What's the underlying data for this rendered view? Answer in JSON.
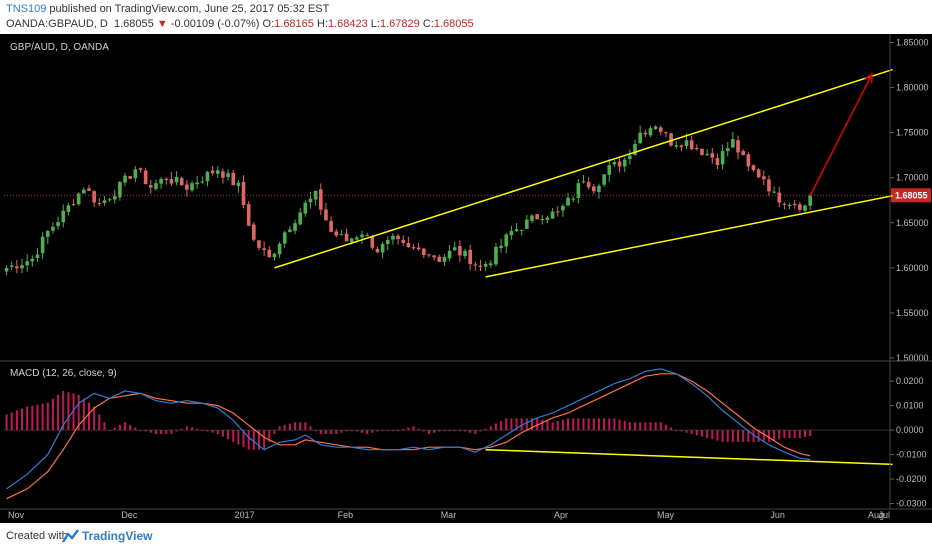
{
  "header": {
    "user": "TNS109",
    "published": " published on TradingView.com, June 25, 2017 05:32 EST",
    "symbol": "OANDA:GBPAUD, D",
    "last": "1.68055",
    "change_arrow": "▼",
    "change": "-0.00109 (-0.07%)",
    "o_label": "O:",
    "o": "1.68165",
    "h_label": "H:",
    "h": "1.68423",
    "l_label": "L:",
    "l": "1.67829",
    "c_label": "C:",
    "c": "1.68055"
  },
  "footer": {
    "created_with": "Created with",
    "brand": "TradingView"
  },
  "colors": {
    "background": "#000000",
    "up": "#4caf50",
    "down": "#e06666",
    "channel": "#ffff00",
    "projection": "#e00000",
    "macd": "#2f7bd0",
    "signal": "#ff7043",
    "histogram": "#c2185b",
    "price_tag": "#c62828"
  },
  "chart_data": [
    {
      "type": "candlestick",
      "title": "GBP/AUD, D, OANDA",
      "ylim": [
        1.5,
        1.855
      ],
      "yticks": [
        "1.85000",
        "1.80000",
        "1.75000",
        "1.70000",
        "1.65000",
        "1.60000",
        "1.55000",
        "1.50000"
      ],
      "xticks": [
        "Nov",
        "Dec",
        "2017",
        "Feb",
        "Mar",
        "Apr",
        "May",
        "Jun",
        "Jul",
        "Aug"
      ],
      "last_price_label": "1.68055",
      "close_path": [
        [
          0,
          1.6
        ],
        [
          5,
          1.61
        ],
        [
          8,
          1.64
        ],
        [
          11,
          1.66
        ],
        [
          15,
          1.69
        ],
        [
          18,
          1.67
        ],
        [
          22,
          1.69
        ],
        [
          25,
          1.71
        ],
        [
          28,
          1.69
        ],
        [
          31,
          1.7
        ],
        [
          35,
          1.69
        ],
        [
          38,
          1.7
        ],
        [
          41,
          1.71
        ],
        [
          45,
          1.69
        ],
        [
          48,
          1.63
        ],
        [
          51,
          1.61
        ],
        [
          54,
          1.64
        ],
        [
          58,
          1.67
        ],
        [
          60,
          1.68
        ],
        [
          63,
          1.64
        ],
        [
          66,
          1.63
        ],
        [
          69,
          1.64
        ],
        [
          72,
          1.62
        ],
        [
          75,
          1.63
        ],
        [
          78,
          1.62
        ],
        [
          81,
          1.62
        ],
        [
          84,
          1.61
        ],
        [
          87,
          1.62
        ],
        [
          90,
          1.61
        ],
        [
          92,
          1.6
        ],
        [
          94,
          1.61
        ],
        [
          98,
          1.64
        ],
        [
          101,
          1.65
        ],
        [
          104,
          1.66
        ],
        [
          107,
          1.66
        ],
        [
          110,
          1.68
        ],
        [
          112,
          1.7
        ],
        [
          114,
          1.69
        ],
        [
          117,
          1.71
        ],
        [
          120,
          1.72
        ],
        [
          123,
          1.75
        ],
        [
          126,
          1.76
        ],
        [
          129,
          1.74
        ],
        [
          132,
          1.74
        ],
        [
          135,
          1.73
        ],
        [
          138,
          1.72
        ],
        [
          141,
          1.74
        ],
        [
          144,
          1.71
        ],
        [
          147,
          1.7
        ],
        [
          149,
          1.68
        ],
        [
          151,
          1.675
        ],
        [
          153,
          1.672
        ],
        [
          155,
          1.668
        ],
        [
          156,
          1.6805
        ]
      ],
      "channel_upper": [
        [
          1.6,
          52
        ],
        [
          1.82,
          172
        ]
      ],
      "channel_lower": [
        [
          1.59,
          93
        ],
        [
          1.68,
          172
        ]
      ],
      "projection_arrow": {
        "from": [
          156,
          1.68
        ],
        "to": [
          168,
          1.815
        ]
      }
    },
    {
      "type": "line",
      "title": "MACD (12, 26, close, 9)",
      "ylim": [
        -0.031,
        0.027
      ],
      "yticks": [
        "0.0200",
        "0.0100",
        "0.0000",
        "-0.0100",
        "-0.0200",
        "-0.0300"
      ],
      "series": [
        {
          "name": "MACD",
          "points": [
            [
              0,
              -0.024
            ],
            [
              4,
              -0.018
            ],
            [
              8,
              -0.01
            ],
            [
              11,
              0.002
            ],
            [
              14,
              0.011
            ],
            [
              17,
              0.015
            ],
            [
              20,
              0.013
            ],
            [
              23,
              0.016
            ],
            [
              26,
              0.015
            ],
            [
              29,
              0.012
            ],
            [
              32,
              0.011
            ],
            [
              35,
              0.012
            ],
            [
              38,
              0.011
            ],
            [
              41,
              0.009
            ],
            [
              44,
              0.004
            ],
            [
              47,
              -0.003
            ],
            [
              50,
              -0.008
            ],
            [
              53,
              -0.005
            ],
            [
              56,
              -0.004
            ],
            [
              58,
              -0.002
            ],
            [
              61,
              -0.006
            ],
            [
              64,
              -0.007
            ],
            [
              67,
              -0.007
            ],
            [
              70,
              -0.008
            ],
            [
              73,
              -0.008
            ],
            [
              76,
              -0.008
            ],
            [
              79,
              -0.007
            ],
            [
              82,
              -0.008
            ],
            [
              85,
              -0.007
            ],
            [
              88,
              -0.007
            ],
            [
              91,
              -0.009
            ],
            [
              94,
              -0.006
            ],
            [
              97,
              -0.002
            ],
            [
              100,
              0.002
            ],
            [
              103,
              0.005
            ],
            [
              106,
              0.007
            ],
            [
              109,
              0.01
            ],
            [
              112,
              0.013
            ],
            [
              115,
              0.016
            ],
            [
              118,
              0.019
            ],
            [
              121,
              0.021
            ],
            [
              124,
              0.024
            ],
            [
              127,
              0.025
            ],
            [
              130,
              0.023
            ],
            [
              133,
              0.019
            ],
            [
              136,
              0.014
            ],
            [
              139,
              0.008
            ],
            [
              142,
              0.003
            ],
            [
              145,
              -0.002
            ],
            [
              148,
              -0.006
            ],
            [
              151,
              -0.009
            ],
            [
              154,
              -0.0115
            ],
            [
              156,
              -0.012
            ]
          ]
        },
        {
          "name": "Signal",
          "points": [
            [
              0,
              -0.028
            ],
            [
              4,
              -0.024
            ],
            [
              8,
              -0.017
            ],
            [
              11,
              -0.008
            ],
            [
              14,
              0.002
            ],
            [
              17,
              0.009
            ],
            [
              20,
              0.013
            ],
            [
              23,
              0.014
            ],
            [
              26,
              0.015
            ],
            [
              29,
              0.013
            ],
            [
              32,
              0.012
            ],
            [
              35,
              0.011
            ],
            [
              38,
              0.011
            ],
            [
              41,
              0.01
            ],
            [
              44,
              0.007
            ],
            [
              47,
              0.002
            ],
            [
              50,
              -0.003
            ],
            [
              53,
              -0.006
            ],
            [
              56,
              -0.006
            ],
            [
              58,
              -0.004
            ],
            [
              61,
              -0.005
            ],
            [
              64,
              -0.006
            ],
            [
              67,
              -0.007
            ],
            [
              70,
              -0.007
            ],
            [
              73,
              -0.008
            ],
            [
              76,
              -0.008
            ],
            [
              79,
              -0.008
            ],
            [
              82,
              -0.007
            ],
            [
              85,
              -0.007
            ],
            [
              88,
              -0.007
            ],
            [
              91,
              -0.008
            ],
            [
              94,
              -0.007
            ],
            [
              97,
              -0.005
            ],
            [
              100,
              -0.001
            ],
            [
              103,
              0.002
            ],
            [
              106,
              0.005
            ],
            [
              109,
              0.007
            ],
            [
              112,
              0.01
            ],
            [
              115,
              0.013
            ],
            [
              118,
              0.016
            ],
            [
              121,
              0.019
            ],
            [
              124,
              0.022
            ],
            [
              127,
              0.023
            ],
            [
              130,
              0.023
            ],
            [
              133,
              0.02
            ],
            [
              136,
              0.016
            ],
            [
              139,
              0.011
            ],
            [
              142,
              0.006
            ],
            [
              145,
              0.001
            ],
            [
              148,
              -0.003
            ],
            [
              151,
              -0.007
            ],
            [
              154,
              -0.0095
            ],
            [
              156,
              -0.0105
            ]
          ]
        }
      ],
      "divergence_line": [
        [
          -0.008,
          93
        ],
        [
          -0.014,
          172
        ]
      ]
    }
  ]
}
